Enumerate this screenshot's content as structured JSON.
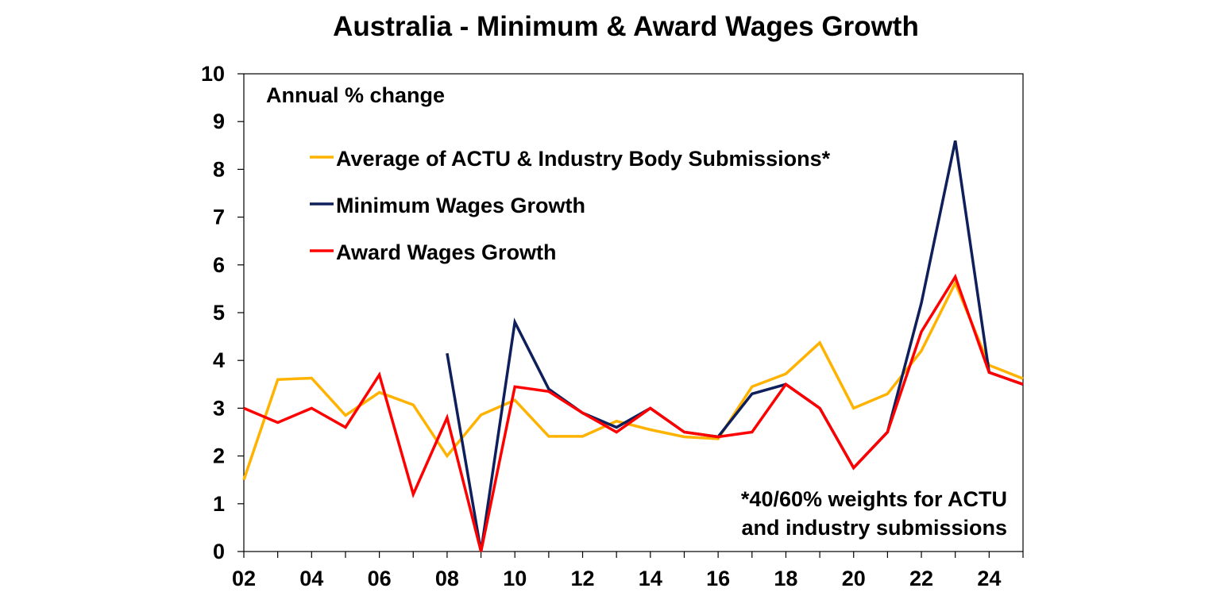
{
  "chart_data": {
    "type": "line",
    "title": "Australia - Minimum & Award Wages Growth",
    "ylabel": "Annual % change",
    "xlabel": "",
    "ylim": [
      0,
      10
    ],
    "yticks": [
      "0",
      "1",
      "2",
      "3",
      "4",
      "5",
      "6",
      "7",
      "8",
      "9",
      "10"
    ],
    "xlim": [
      2002,
      2025
    ],
    "xticks": [
      {
        "value": 2002,
        "label": "02"
      },
      {
        "value": 2004,
        "label": "04"
      },
      {
        "value": 2006,
        "label": "06"
      },
      {
        "value": 2008,
        "label": "08"
      },
      {
        "value": 2010,
        "label": "10"
      },
      {
        "value": 2012,
        "label": "12"
      },
      {
        "value": 2014,
        "label": "14"
      },
      {
        "value": 2016,
        "label": "16"
      },
      {
        "value": 2018,
        "label": "18"
      },
      {
        "value": 2020,
        "label": "20"
      },
      {
        "value": 2022,
        "label": "22"
      },
      {
        "value": 2024,
        "label": "24"
      }
    ],
    "grid": false,
    "legend_position": "top-left",
    "series": [
      {
        "name": "Average of ACTU & Industry Body Submissions*",
        "color": "#FFB300",
        "x": [
          2002,
          2003,
          2004,
          2005,
          2006,
          2007,
          2008,
          2009,
          2010,
          2011,
          2012,
          2013,
          2014,
          2015,
          2016,
          2017,
          2018,
          2019,
          2020,
          2021,
          2022,
          2023,
          2024,
          2025
        ],
        "values": [
          1.5,
          3.6,
          3.63,
          2.85,
          3.33,
          3.07,
          2.0,
          2.86,
          3.17,
          2.41,
          2.41,
          2.73,
          2.55,
          2.4,
          2.36,
          3.45,
          3.72,
          4.37,
          3.0,
          3.3,
          4.2,
          5.62,
          3.9,
          3.62
        ]
      },
      {
        "name": "Minimum Wages Growth",
        "color": "#0F1F5C",
        "x": [
          2008,
          2009,
          2010,
          2011,
          2012,
          2013,
          2014,
          2015,
          2016,
          2017,
          2018,
          2019,
          2020,
          2021,
          2022,
          2023,
          2024,
          2025
        ],
        "values": [
          4.15,
          0,
          4.8,
          3.4,
          2.9,
          2.6,
          3.0,
          2.5,
          2.4,
          3.3,
          3.5,
          3.0,
          1.75,
          2.5,
          5.2,
          8.6,
          3.75,
          3.5
        ]
      },
      {
        "name": "Award Wages Growth",
        "color": "#FF0000",
        "x": [
          2002,
          2003,
          2004,
          2005,
          2006,
          2007,
          2008,
          2009,
          2010,
          2011,
          2012,
          2013,
          2014,
          2015,
          2016,
          2017,
          2018,
          2019,
          2020,
          2021,
          2022,
          2023,
          2024,
          2025
        ],
        "values": [
          3.0,
          2.7,
          3.0,
          2.6,
          3.7,
          1.2,
          2.8,
          0,
          3.45,
          3.35,
          2.9,
          2.5,
          3.0,
          2.5,
          2.4,
          2.5,
          3.5,
          3.0,
          1.75,
          2.5,
          4.6,
          5.75,
          3.75,
          3.5
        ]
      }
    ],
    "annotation": [
      "*40/60% weights for ACTU",
      "and industry submissions"
    ]
  }
}
